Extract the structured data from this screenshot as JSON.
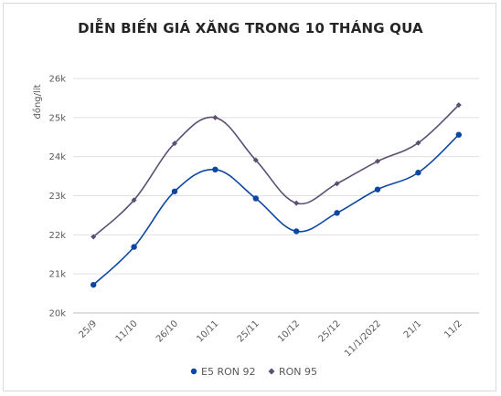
{
  "chart_data": {
    "type": "line",
    "title": "DIỄN BIẾN GIÁ XĂNG TRONG 10 THÁNG QUA",
    "ylabel": "đồng/lít",
    "xlabel": "",
    "categories": [
      "25/9",
      "11/10",
      "26/10",
      "10/11",
      "25/11",
      "10/12",
      "25/12",
      "11/1/2022",
      "21/1",
      "11/2"
    ],
    "ylim": [
      20000,
      26000
    ],
    "yticks": [
      20000,
      21000,
      22000,
      23000,
      24000,
      25000,
      26000
    ],
    "ytick_labels": [
      "20k",
      "21k",
      "22k",
      "23k",
      "24k",
      "25k",
      "26k"
    ],
    "grid": true,
    "legend_position": "bottom",
    "series": [
      {
        "name": "E5 RON 92",
        "color": "#0d47a1",
        "marker": "circle",
        "values": [
          20720,
          21690,
          23110,
          23670,
          22930,
          22090,
          22560,
          23160,
          23590,
          24560
        ]
      },
      {
        "name": "RON 95",
        "color": "#5b4f72",
        "marker": "diamond",
        "values": [
          21950,
          22890,
          24340,
          25000,
          23910,
          22810,
          23310,
          23880,
          24350,
          25320
        ]
      }
    ]
  }
}
